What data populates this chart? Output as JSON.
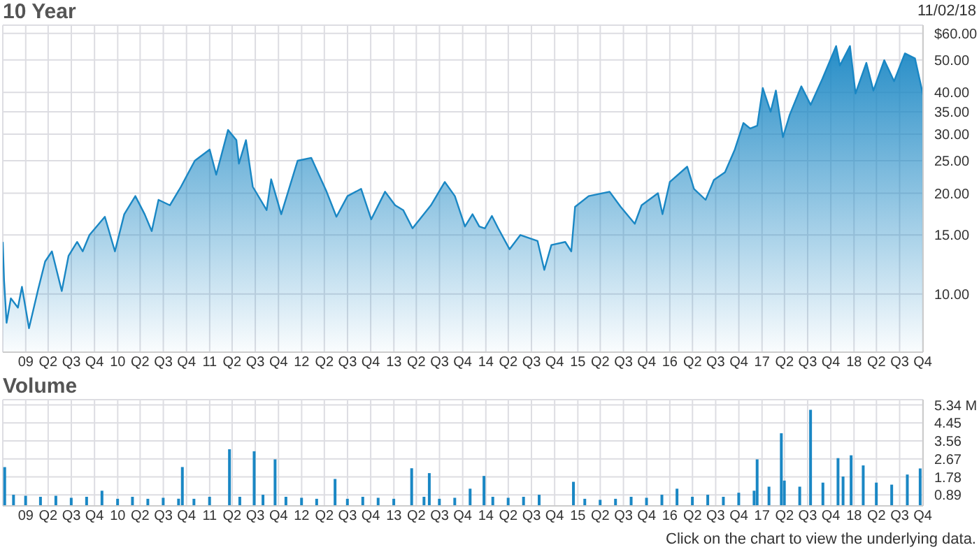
{
  "chart_data": [
    {
      "type": "area",
      "title": "10 Year",
      "annotations": [
        "11/02/18"
      ],
      "color": "#1a87c4",
      "log": "y",
      "grid": true,
      "x": [
        "2008-11-02",
        "2008-11-07",
        "2008-11-17",
        "2008-12-04",
        "2009-01-01",
        "2009-01-17",
        "2009-02-14",
        "2009-03-22",
        "2009-04-19",
        "2009-05-16",
        "2009-06-24",
        "2009-07-21",
        "2009-08-24",
        "2009-09-15",
        "2009-10-12",
        "2009-12-12",
        "2010-01-21",
        "2010-02-27",
        "2010-04-12",
        "2010-05-19",
        "2010-06-16",
        "2010-07-13",
        "2010-08-27",
        "2010-10-10",
        "2010-12-04",
        "2011-02-01",
        "2011-02-27",
        "2011-04-15",
        "2011-05-18",
        "2011-05-28",
        "2011-06-25",
        "2011-07-22",
        "2011-09-15",
        "2011-10-03",
        "2011-11-12",
        "2012-01-16",
        "2012-03-10",
        "2012-05-10",
        "2012-06-18",
        "2012-08-01",
        "2012-09-24",
        "2012-11-03",
        "2012-12-28",
        "2013-02-06",
        "2013-03-10",
        "2013-04-16",
        "2013-06-28",
        "2013-08-22",
        "2013-10-01",
        "2013-11-10",
        "2013-12-10",
        "2014-01-06",
        "2014-01-28",
        "2014-02-25",
        "2014-03-22",
        "2014-05-06",
        "2014-06-18",
        "2014-08-25",
        "2014-09-21",
        "2014-10-19",
        "2014-12-13",
        "2015-01-06",
        "2015-01-21",
        "2015-03-16",
        "2015-06-07",
        "2015-07-21",
        "2015-09-15",
        "2015-10-12",
        "2015-12-16",
        "2016-01-03",
        "2016-02-01",
        "2016-04-10",
        "2016-05-07",
        "2016-06-22",
        "2016-07-25",
        "2016-09-07",
        "2016-10-16",
        "2016-11-19",
        "2016-12-16",
        "2017-01-13",
        "2017-02-04",
        "2017-03-07",
        "2017-03-28",
        "2017-04-25",
        "2017-05-22",
        "2017-07-07",
        "2017-08-13",
        "2017-09-28",
        "2017-11-22",
        "2017-12-07",
        "2018-01-16",
        "2018-02-07",
        "2018-03-22",
        "2018-04-19",
        "2018-06-01",
        "2018-07-10",
        "2018-08-22",
        "2018-10-01",
        "2018-11-02"
      ],
      "values": [
        14.3,
        11.0,
        8.2,
        9.7,
        9.1,
        10.5,
        7.9,
        10.3,
        12.5,
        13.4,
        10.2,
        13.0,
        14.3,
        13.4,
        15,
        17.0,
        13.4,
        17.3,
        19.6,
        17.3,
        15.4,
        19.1,
        18.4,
        20.9,
        25,
        27.0,
        22.7,
        30.9,
        28.8,
        24.5,
        28.8,
        20.9,
        17.8,
        22.0,
        17.3,
        25.0,
        25.5,
        20.2,
        17.0,
        19.6,
        20.6,
        16.7,
        20.2,
        18.4,
        17.8,
        15.7,
        18.4,
        21.6,
        19.6,
        15.9,
        17.3,
        15.9,
        15.7,
        17.1,
        15.7,
        13.6,
        15.0,
        14.4,
        11.8,
        14.0,
        14.3,
        13.4,
        18.2,
        19.6,
        20.2,
        18.2,
        16.2,
        18.4,
        20.0,
        17.3,
        21.6,
        24.0,
        20.6,
        19.1,
        21.9,
        23.1,
        27.0,
        32.4,
        31.2,
        31.8,
        41.2,
        35.0,
        40.5,
        29.4,
        34.3,
        41.7,
        36.7,
        43.8,
        55.0,
        48.1,
        55.0,
        39.7,
        49.0,
        40.5,
        49.9,
        43.2,
        52.3,
        50.5,
        39.3
      ],
      "xlim": [
        "2008-11-02",
        "2018-11-02"
      ],
      "ylim": [
        6.7,
        63.5
      ],
      "yticks": [
        {
          "value": 60,
          "label": "$60.00"
        },
        {
          "value": 50,
          "label": "50.00"
        },
        {
          "value": 40,
          "label": "40.00"
        },
        {
          "value": 35,
          "label": "35.00"
        },
        {
          "value": 30,
          "label": "30.00"
        },
        {
          "value": 25,
          "label": "25.00"
        },
        {
          "value": 20,
          "label": "20.00"
        },
        {
          "value": 15,
          "label": "15.00"
        },
        {
          "value": 10,
          "label": "10.00"
        }
      ],
      "xticks": [
        {
          "value": "2009-02-01",
          "label": "09"
        },
        {
          "value": "2009-05-01",
          "label": "Q2"
        },
        {
          "value": "2009-08-01",
          "label": "Q3"
        },
        {
          "value": "2009-11-01",
          "label": "Q4"
        },
        {
          "value": "2010-02-01",
          "label": "10"
        },
        {
          "value": "2010-05-01",
          "label": "Q2"
        },
        {
          "value": "2010-08-01",
          "label": "Q3"
        },
        {
          "value": "2010-11-01",
          "label": "Q4"
        },
        {
          "value": "2011-02-01",
          "label": "11"
        },
        {
          "value": "2011-05-01",
          "label": "Q2"
        },
        {
          "value": "2011-08-01",
          "label": "Q3"
        },
        {
          "value": "2011-11-01",
          "label": "Q4"
        },
        {
          "value": "2012-02-01",
          "label": "12"
        },
        {
          "value": "2012-05-01",
          "label": "Q2"
        },
        {
          "value": "2012-08-01",
          "label": "Q3"
        },
        {
          "value": "2012-11-01",
          "label": "Q4"
        },
        {
          "value": "2013-02-01",
          "label": "13"
        },
        {
          "value": "2013-05-01",
          "label": "Q2"
        },
        {
          "value": "2013-08-01",
          "label": "Q3"
        },
        {
          "value": "2013-11-01",
          "label": "Q4"
        },
        {
          "value": "2014-02-01",
          "label": "14"
        },
        {
          "value": "2014-05-01",
          "label": "Q2"
        },
        {
          "value": "2014-08-01",
          "label": "Q3"
        },
        {
          "value": "2014-11-01",
          "label": "Q4"
        },
        {
          "value": "2015-02-01",
          "label": "15"
        },
        {
          "value": "2015-05-01",
          "label": "Q2"
        },
        {
          "value": "2015-08-01",
          "label": "Q3"
        },
        {
          "value": "2015-11-01",
          "label": "Q4"
        },
        {
          "value": "2016-02-01",
          "label": "16"
        },
        {
          "value": "2016-05-01",
          "label": "Q2"
        },
        {
          "value": "2016-08-01",
          "label": "Q3"
        },
        {
          "value": "2016-11-01",
          "label": "Q4"
        },
        {
          "value": "2017-02-01",
          "label": "17"
        },
        {
          "value": "2017-05-01",
          "label": "Q2"
        },
        {
          "value": "2017-08-01",
          "label": "Q3"
        },
        {
          "value": "2017-11-01",
          "label": "Q4"
        },
        {
          "value": "2018-02-01",
          "label": "18"
        },
        {
          "value": "2018-05-01",
          "label": "Q2"
        },
        {
          "value": "2018-08-01",
          "label": "Q3"
        },
        {
          "value": "2018-11-01",
          "label": "Q4"
        }
      ]
    },
    {
      "type": "bar",
      "title": "Volume",
      "annotations": [
        "Click on the chart to view the underlying data."
      ],
      "color": "#1a87c4",
      "grid": true,
      "x": [
        "2008-11-10",
        "2008-12-15",
        "2009-02-01",
        "2009-04-01",
        "2009-06-01",
        "2009-08-01",
        "2009-10-01",
        "2009-12-01",
        "2010-02-01",
        "2010-04-01",
        "2010-06-01",
        "2010-08-01",
        "2010-10-01",
        "2010-10-16",
        "2010-12-01",
        "2011-02-01",
        "2011-04-21",
        "2011-06-01",
        "2011-07-28",
        "2011-09-01",
        "2011-10-19",
        "2011-12-01",
        "2012-02-01",
        "2012-04-01",
        "2012-06-13",
        "2012-08-01",
        "2012-10-01",
        "2012-12-01",
        "2013-02-01",
        "2013-04-13",
        "2013-06-01",
        "2013-06-22",
        "2013-08-01",
        "2013-10-01",
        "2013-12-01",
        "2014-01-25",
        "2014-03-01",
        "2014-05-01",
        "2014-07-01",
        "2014-09-01",
        "2015-01-15",
        "2015-03-01",
        "2015-05-01",
        "2015-07-01",
        "2015-09-01",
        "2015-11-01",
        "2016-01-01",
        "2016-03-01",
        "2016-05-01",
        "2016-07-01",
        "2016-09-01",
        "2016-11-01",
        "2017-01-01",
        "2017-01-13",
        "2017-03-01",
        "2017-04-19",
        "2017-05-01",
        "2017-07-01",
        "2017-08-13",
        "2017-10-01",
        "2017-11-30",
        "2017-12-20",
        "2018-01-21",
        "2018-03-10",
        "2018-05-01",
        "2018-07-01",
        "2018-09-01",
        "2018-10-22"
      ],
      "values": [
        2.27,
        0.9,
        0.85,
        0.8,
        0.85,
        0.75,
        0.8,
        1.1,
        0.7,
        0.8,
        0.7,
        0.75,
        0.7,
        2.27,
        0.7,
        0.8,
        3.15,
        0.8,
        3.05,
        0.9,
        2.65,
        0.8,
        0.75,
        0.7,
        1.68,
        0.7,
        0.8,
        0.75,
        0.7,
        2.21,
        0.8,
        1.97,
        0.7,
        0.75,
        1.2,
        1.83,
        0.8,
        0.75,
        0.8,
        0.9,
        1.54,
        0.7,
        0.65,
        0.7,
        0.8,
        0.75,
        0.9,
        1.2,
        0.8,
        0.9,
        0.8,
        1.0,
        1.1,
        2.65,
        1.3,
        3.94,
        1.6,
        1.3,
        5.1,
        1.5,
        2.71,
        1.8,
        2.85,
        2.35,
        1.5,
        1.4,
        1.9,
        2.2
      ],
      "xlim": [
        "2008-11-02",
        "2018-11-02"
      ],
      "ylim": [
        0.35,
        5.6
      ],
      "yticks": [
        {
          "value": 5.34,
          "label": "5.34 M"
        },
        4.45,
        3.56,
        2.67,
        1.78,
        0.89
      ],
      "xticks": [
        {
          "value": "2009-02-01",
          "label": "09"
        },
        {
          "value": "2009-05-01",
          "label": "Q2"
        },
        {
          "value": "2009-08-01",
          "label": "Q3"
        },
        {
          "value": "2009-11-01",
          "label": "Q4"
        },
        {
          "value": "2010-02-01",
          "label": "10"
        },
        {
          "value": "2010-05-01",
          "label": "Q2"
        },
        {
          "value": "2010-08-01",
          "label": "Q3"
        },
        {
          "value": "2010-11-01",
          "label": "Q4"
        },
        {
          "value": "2011-02-01",
          "label": "11"
        },
        {
          "value": "2011-05-01",
          "label": "Q2"
        },
        {
          "value": "2011-08-01",
          "label": "Q3"
        },
        {
          "value": "2011-11-01",
          "label": "Q4"
        },
        {
          "value": "2012-02-01",
          "label": "12"
        },
        {
          "value": "2012-05-01",
          "label": "Q2"
        },
        {
          "value": "2012-08-01",
          "label": "Q3"
        },
        {
          "value": "2012-11-01",
          "label": "Q4"
        },
        {
          "value": "2013-02-01",
          "label": "13"
        },
        {
          "value": "2013-05-01",
          "label": "Q2"
        },
        {
          "value": "2013-08-01",
          "label": "Q3"
        },
        {
          "value": "2013-11-01",
          "label": "Q4"
        },
        {
          "value": "2014-02-01",
          "label": "14"
        },
        {
          "value": "2014-05-01",
          "label": "Q2"
        },
        {
          "value": "2014-08-01",
          "label": "Q3"
        },
        {
          "value": "2014-11-01",
          "label": "Q4"
        },
        {
          "value": "2015-02-01",
          "label": "15"
        },
        {
          "value": "2015-05-01",
          "label": "Q2"
        },
        {
          "value": "2015-08-01",
          "label": "Q3"
        },
        {
          "value": "2015-11-01",
          "label": "Q4"
        },
        {
          "value": "2016-02-01",
          "label": "16"
        },
        {
          "value": "2016-05-01",
          "label": "Q2"
        },
        {
          "value": "2016-08-01",
          "label": "Q3"
        },
        {
          "value": "2016-11-01",
          "label": "Q4"
        },
        {
          "value": "2017-02-01",
          "label": "17"
        },
        {
          "value": "2017-05-01",
          "label": "Q2"
        },
        {
          "value": "2017-08-01",
          "label": "Q3"
        },
        {
          "value": "2017-11-01",
          "label": "Q4"
        },
        {
          "value": "2018-02-01",
          "label": "18"
        },
        {
          "value": "2018-05-01",
          "label": "Q2"
        },
        {
          "value": "2018-08-01",
          "label": "Q3"
        },
        {
          "value": "2018-11-01",
          "label": "Q4"
        }
      ]
    }
  ]
}
